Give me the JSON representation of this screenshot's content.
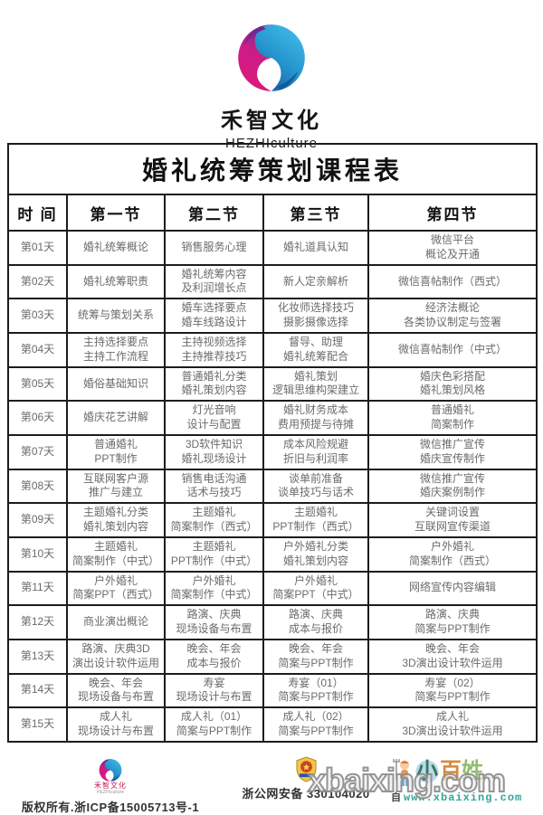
{
  "brand": {
    "name_cn": "禾智文化",
    "name_en": "HEZHIculture",
    "pink": "#e0177b",
    "purple": "#8c2b90",
    "blue": "#41bde8",
    "blue_dark": "#145a9b"
  },
  "table": {
    "title": "婚礼统筹策划课程表",
    "headers": [
      "时 间",
      "第一节",
      "第二节",
      "第三节",
      "第四节"
    ],
    "rows": [
      {
        "day": "第01天",
        "c1": "婚礼统筹概论",
        "c2": "销售服务心理",
        "c3": "婚礼道具认知",
        "c4": "微信平台\n概论及开通"
      },
      {
        "day": "第02天",
        "c1": "婚礼统筹职责",
        "c2": "婚礼统筹内容\n及利润增长点",
        "c3": "新人定亲解析",
        "c4": "微信喜帖制作（西式）"
      },
      {
        "day": "第03天",
        "c1": "统筹与策划关系",
        "c2": "婚车选择要点\n婚车线路设计",
        "c3": "化妆师选择技巧\n摄影摄像选择",
        "c4": "经济法概论\n各类协议制定与签署"
      },
      {
        "day": "第04天",
        "c1": "主持选择要点\n主持工作流程",
        "c2": "主持视频选择\n主持推荐技巧",
        "c3": "督导、助理\n婚礼统筹配合",
        "c4": "微信喜帖制作（中式）"
      },
      {
        "day": "第05天",
        "c1": "婚俗基础知识",
        "c2": "普通婚礼分类\n婚礼策划内容",
        "c3": "婚礼策划\n逻辑思维构架建立",
        "c4": "婚庆色彩搭配\n婚礼策划风格"
      },
      {
        "day": "第06天",
        "c1": "婚庆花艺讲解",
        "c2": "灯光音响\n设计与配置",
        "c3": "婚礼财务成本\n费用预提与待摊",
        "c4": "普通婚礼\n简案制作"
      },
      {
        "day": "第07天",
        "c1": "普通婚礼\nPPT制作",
        "c2": "3D软件知识\n婚礼现场设计",
        "c3": "成本风险规避\n折旧与利润率",
        "c4": "微信推广宣传\n婚庆宣传制作"
      },
      {
        "day": "第08天",
        "c1": "互联网客户源\n推广与建立",
        "c2": "销售电话沟通\n话术与技巧",
        "c3": "谈单前准备\n谈单技巧与话术",
        "c4": "微信推广宣传\n婚庆案例制作"
      },
      {
        "day": "第09天",
        "c1": "主题婚礼分类\n婚礼策划内容",
        "c2": "主题婚礼\n简案制作（西式）",
        "c3": "主题婚礼\nPPT制作（西式）",
        "c4": "关键词设置\n互联网宣传渠道"
      },
      {
        "day": "第10天",
        "c1": "主题婚礼\n简案制作（中式）",
        "c2": "主题婚礼\nPPT制作（中式）",
        "c3": "户外婚礼分类\n婚礼策划内容",
        "c4": "户外婚礼\n简案制作（西式）"
      },
      {
        "day": "第11天",
        "c1": "户外婚礼\n简案PPT（西式）",
        "c2": "户外婚礼\n简案制作（中式）",
        "c3": "户外婚礼\n简案PPT（中式）",
        "c4": "网络宣传内容编辑"
      },
      {
        "day": "第12天",
        "c1": "商业演出概论",
        "c2": "路演、庆典\n现场设备与布置",
        "c3": "路演、庆典\n成本与报价",
        "c4": "路演、庆典\n简案与PPT制作"
      },
      {
        "day": "第13天",
        "c1": "路演、庆典3D\n演出设计软件运用",
        "c2": "晚会、年会\n成本与报价",
        "c3": "晚会、年会\n简案与PPT制作",
        "c4": "晚会、年会\n3D演出设计软件运用"
      },
      {
        "day": "第14天",
        "c1": "晚会、年会\n现场设备与布置",
        "c2": "寿宴\n现场设计与布置",
        "c3": "寿宴（01）\n简案与PPT制作",
        "c4": "寿宴（02）\n简案与PPT制作"
      },
      {
        "day": "第15天",
        "c1": "成人礼\n现场设计与布置",
        "c2": "成人礼（01）\n简案与PPT制作",
        "c3": "成人礼（02）\n简案与PPT制作",
        "c4": "成人礼\n3D演出设计软件运用"
      }
    ]
  },
  "footer": {
    "brand_cn": "禾智文化",
    "brand_en": "HEZHIculture",
    "copyright": "版权所有.浙ICP备15005713号-1",
    "security_text": "浙公网安备 330104020",
    "mascot_chars": [
      "小",
      "百",
      "姓"
    ],
    "partial_char": "自",
    "site_url": "www.xbaixing.com",
    "watermark": "xbaixing.com",
    "url_color": "#2fa69e"
  }
}
